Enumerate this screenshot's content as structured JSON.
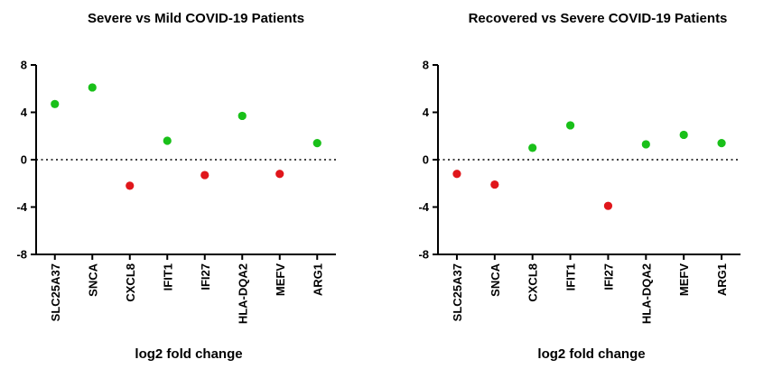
{
  "colors": {
    "up": "#19c019",
    "down": "#e0161b",
    "axis": "#000000"
  },
  "chart_data": [
    {
      "type": "scatter",
      "title": "Severe vs Mild COVID-19 Patients",
      "xlabel": "log2 fold change",
      "ylabel": "",
      "categories": [
        "SLC25A37",
        "SNCA",
        "CXCL8",
        "IFIT1",
        "IFI27",
        "HLA-DQA2",
        "MEFV",
        "ARG1"
      ],
      "values": [
        4.7,
        6.1,
        -2.2,
        1.6,
        -1.3,
        3.7,
        -1.2,
        1.4
      ],
      "ylim": [
        -8,
        8
      ],
      "yticks": [
        "8",
        "4",
        "0",
        "-4",
        "-8"
      ],
      "reference_line": 0,
      "grid": false,
      "legend": "none"
    },
    {
      "type": "scatter",
      "title": "Recovered vs Severe COVID-19 Patients",
      "xlabel": "log2 fold change",
      "ylabel": "",
      "categories": [
        "SLC25A37",
        "SNCA",
        "CXCL8",
        "IFIT1",
        "IFI27",
        "HLA-DQA2",
        "MEFV",
        "ARG1"
      ],
      "values": [
        -1.2,
        -2.1,
        1.0,
        2.9,
        -3.9,
        1.3,
        2.1,
        1.4
      ],
      "ylim": [
        -8,
        8
      ],
      "yticks": [
        "8",
        "4",
        "0",
        "-4",
        "-8"
      ],
      "reference_line": 0,
      "grid": false,
      "legend": "none"
    }
  ]
}
